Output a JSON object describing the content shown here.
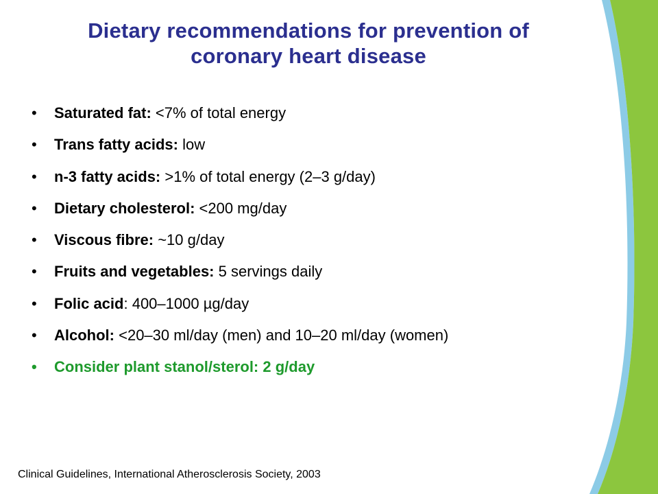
{
  "title": {
    "line1": "Dietary recommendations for prevention of",
    "line2": "coronary heart disease"
  },
  "bullet_glyph": "•",
  "items": [
    {
      "label": "Saturated fat:",
      "text": " <7% of total energy"
    },
    {
      "label": "Trans fatty acids:",
      "text": " low"
    },
    {
      "label": "n-3 fatty acids:",
      "text": " >1% of total energy (2–3 g/day)"
    },
    {
      "label": "Dietary cholesterol:",
      "text": " <200 mg/day"
    },
    {
      "label": "Viscous fibre:",
      "text": " ~10 g/day"
    },
    {
      "label": "Fruits and vegetables:",
      "text": " 5 servings daily"
    },
    {
      "label": "Folic acid",
      "text": ": 400–1000 µg/day"
    },
    {
      "label": "Alcohol:",
      "text": " <20–30 ml/day (men) and 10–20 ml/day (women)"
    },
    {
      "label": "Consider plant stanol/sterol: 2 g/day",
      "text": ""
    }
  ],
  "footnote": "Clinical Guidelines, International Atherosclerosis Society, 2003",
  "colors": {
    "title": "#2b2f8f",
    "highlight": "#1e9a2c",
    "stripe_blue": "#8ccbe6",
    "stripe_green": "#8cc63e"
  }
}
